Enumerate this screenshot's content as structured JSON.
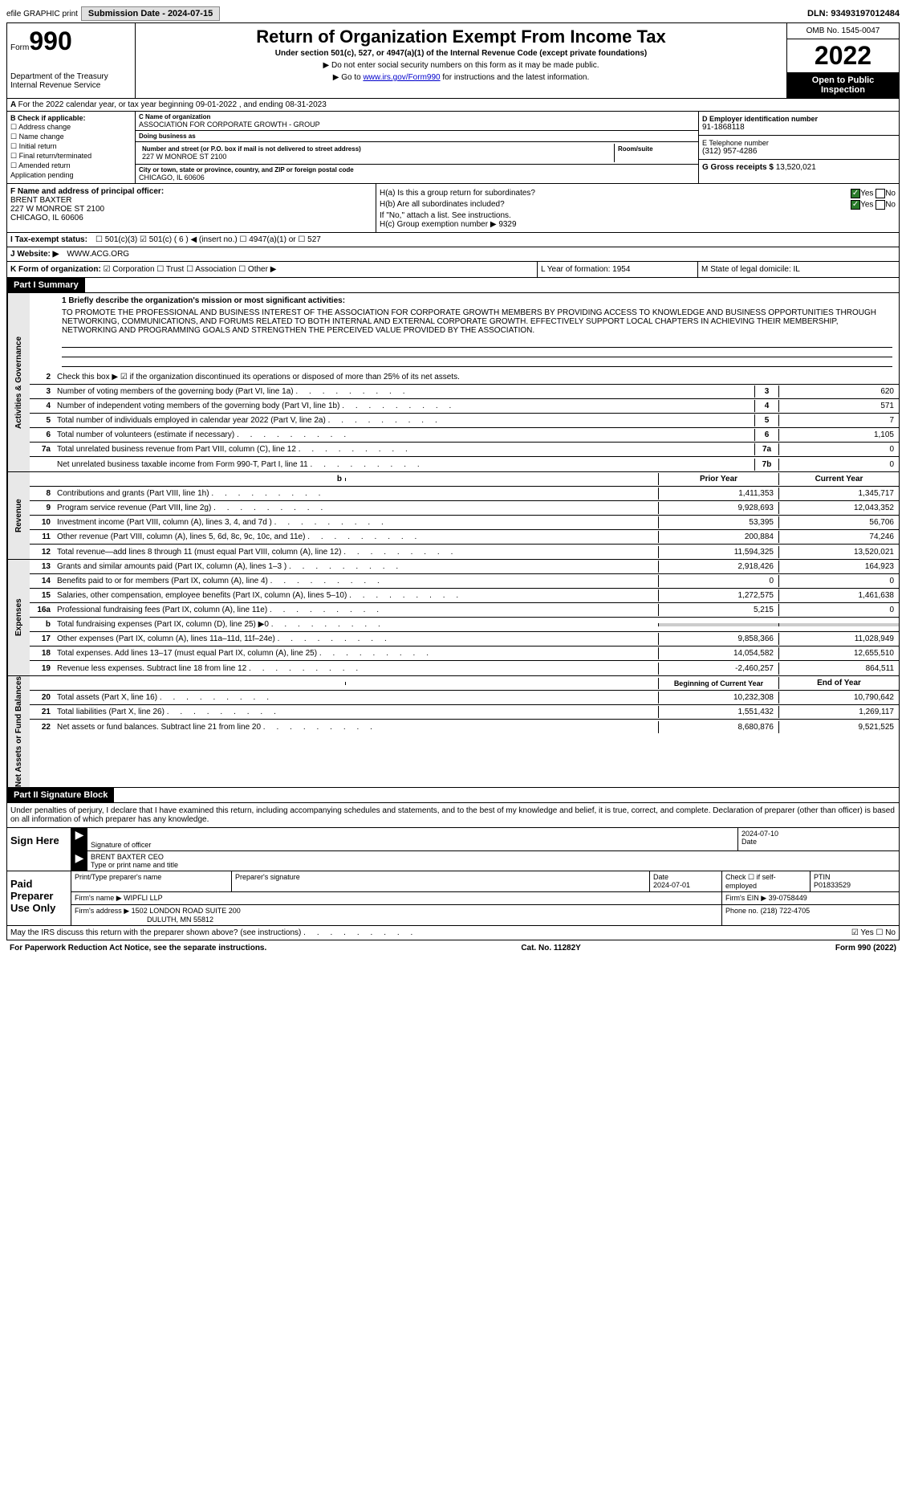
{
  "top": {
    "efile": "efile GRAPHIC print",
    "submission": "Submission Date - 2024-07-15",
    "dln": "DLN: 93493197012484"
  },
  "header": {
    "form_label": "Form",
    "form_num": "990",
    "dept": "Department of the Treasury",
    "irs": "Internal Revenue Service",
    "title": "Return of Organization Exempt From Income Tax",
    "subtitle": "Under section 501(c), 527, or 4947(a)(1) of the Internal Revenue Code (except private foundations)",
    "notice1": "▶ Do not enter social security numbers on this form as it may be made public.",
    "notice2_pre": "▶ Go to ",
    "notice2_link": "www.irs.gov/Form990",
    "notice2_post": " for instructions and the latest information.",
    "omb": "OMB No. 1545-0047",
    "year": "2022",
    "open": "Open to Public Inspection"
  },
  "row_a": "For the 2022 calendar year, or tax year beginning 09-01-2022    , and ending 08-31-2023",
  "col_b": {
    "title": "B Check if applicable:",
    "items": [
      "☐ Address change",
      "☐ Name change",
      "☐ Initial return",
      "☐ Final return/terminated",
      "☐ Amended return",
      "   Application pending"
    ]
  },
  "col_c": {
    "name_label": "C Name of organization",
    "name": "ASSOCIATION FOR CORPORATE GROWTH - GROUP",
    "dba_label": "Doing business as",
    "dba": "",
    "addr_label": "Number and street (or P.O. box if mail is not delivered to street address)",
    "addr": "227 W MONROE ST 2100",
    "room_label": "Room/suite",
    "room": "",
    "city_label": "City or town, state or province, country, and ZIP or foreign postal code",
    "city": "CHICAGO, IL  60606"
  },
  "col_d": {
    "ein_label": "D Employer identification number",
    "ein": "91-1868118",
    "phone_label": "E Telephone number",
    "phone": "(312) 957-4286",
    "gross_label": "G Gross receipts $",
    "gross": "13,520,021"
  },
  "col_f": {
    "label": "F  Name and address of principal officer:",
    "name": "BRENT BAXTER",
    "addr1": "227 W MONROE ST 2100",
    "addr2": "CHICAGO, IL  60606"
  },
  "col_h": {
    "ha_label": "H(a)  Is this a group return for subordinates?",
    "hb_label": "H(b)  Are all subordinates included?",
    "hb_note": "If \"No,\" attach a list. See instructions.",
    "hc_label": "H(c)  Group exemption number ▶",
    "hc_val": "9329"
  },
  "row_i": {
    "label": "I    Tax-exempt status:",
    "opts": "☐ 501(c)(3)   ☑ 501(c) ( 6 ) ◀ (insert no.)   ☐ 4947(a)(1) or  ☐ 527"
  },
  "row_j": {
    "label": "J   Website: ▶",
    "val": "WWW.ACG.ORG"
  },
  "row_k": {
    "label": "K Form of organization:",
    "opts": "☑ Corporation  ☐ Trust  ☐ Association  ☐ Other ▶"
  },
  "row_lm": {
    "l": "L Year of formation: 1954",
    "m": "M State of legal domicile: IL"
  },
  "parts": {
    "p1": "Part I     Summary",
    "p2": "Part II     Signature Block"
  },
  "side_labels": {
    "ag": "Activities & Governance",
    "rev": "Revenue",
    "exp": "Expenses",
    "net": "Net Assets or Fund Balances"
  },
  "summary": {
    "l1_label": "1  Briefly describe the organization's mission or most significant activities:",
    "l1_text": "TO PROMOTE THE PROFESSIONAL AND BUSINESS INTEREST OF THE ASSOCIATION FOR CORPORATE GROWTH MEMBERS BY PROVIDING ACCESS TO KNOWLEDGE AND BUSINESS OPPORTUNITIES THROUGH NETWORKING, COMMUNICATIONS, AND FORUMS RELATED TO BOTH INTERNAL AND EXTERNAL CORPORATE GROWTH. EFFECTIVELY SUPPORT LOCAL CHAPTERS IN ACHIEVING THEIR MEMBERSHIP, NETWORKING AND PROGRAMMING GOALS AND STRENGTHEN THE PERCEIVED VALUE PROVIDED BY THE ASSOCIATION.",
    "l2": "Check this box ▶ ☑ if the organization discontinued its operations or disposed of more than 25% of its net assets.",
    "lines_single": [
      {
        "n": "3",
        "t": "Number of voting members of the governing body (Part VI, line 1a)",
        "b": "3",
        "v": "620"
      },
      {
        "n": "4",
        "t": "Number of independent voting members of the governing body (Part VI, line 1b)",
        "b": "4",
        "v": "571"
      },
      {
        "n": "5",
        "t": "Total number of individuals employed in calendar year 2022 (Part V, line 2a)",
        "b": "5",
        "v": "7"
      },
      {
        "n": "6",
        "t": "Total number of volunteers (estimate if necessary)",
        "b": "6",
        "v": "1,105"
      },
      {
        "n": "7a",
        "t": "Total unrelated business revenue from Part VIII, column (C), line 12",
        "b": "7a",
        "v": "0"
      },
      {
        "n": "",
        "t": "Net unrelated business taxable income from Form 990-T, Part I, line 11",
        "b": "7b",
        "v": "0"
      }
    ],
    "col_headers": {
      "b": "b",
      "prior": "Prior Year",
      "current": "Current Year"
    },
    "revenue": [
      {
        "n": "8",
        "t": "Contributions and grants (Part VIII, line 1h)",
        "p": "1,411,353",
        "c": "1,345,717"
      },
      {
        "n": "9",
        "t": "Program service revenue (Part VIII, line 2g)",
        "p": "9,928,693",
        "c": "12,043,352"
      },
      {
        "n": "10",
        "t": "Investment income (Part VIII, column (A), lines 3, 4, and 7d )",
        "p": "53,395",
        "c": "56,706"
      },
      {
        "n": "11",
        "t": "Other revenue (Part VIII, column (A), lines 5, 6d, 8c, 9c, 10c, and 11e)",
        "p": "200,884",
        "c": "74,246"
      },
      {
        "n": "12",
        "t": "Total revenue—add lines 8 through 11 (must equal Part VIII, column (A), line 12)",
        "p": "11,594,325",
        "c": "13,520,021"
      }
    ],
    "expenses": [
      {
        "n": "13",
        "t": "Grants and similar amounts paid (Part IX, column (A), lines 1–3 )",
        "p": "2,918,426",
        "c": "164,923"
      },
      {
        "n": "14",
        "t": "Benefits paid to or for members (Part IX, column (A), line 4)",
        "p": "0",
        "c": "0"
      },
      {
        "n": "15",
        "t": "Salaries, other compensation, employee benefits (Part IX, column (A), lines 5–10)",
        "p": "1,272,575",
        "c": "1,461,638"
      },
      {
        "n": "16a",
        "t": "Professional fundraising fees (Part IX, column (A), line 11e)",
        "p": "5,215",
        "c": "0"
      },
      {
        "n": "b",
        "t": "Total fundraising expenses (Part IX, column (D), line 25) ▶0",
        "p": "",
        "c": "",
        "gray": true
      },
      {
        "n": "17",
        "t": "Other expenses (Part IX, column (A), lines 11a–11d, 11f–24e)",
        "p": "9,858,366",
        "c": "11,028,949"
      },
      {
        "n": "18",
        "t": "Total expenses. Add lines 13–17 (must equal Part IX, column (A), line 25)",
        "p": "14,054,582",
        "c": "12,655,510"
      },
      {
        "n": "19",
        "t": "Revenue less expenses. Subtract line 18 from line 12",
        "p": "-2,460,257",
        "c": "864,511"
      }
    ],
    "net_headers": {
      "begin": "Beginning of Current Year",
      "end": "End of Year"
    },
    "net": [
      {
        "n": "20",
        "t": "Total assets (Part X, line 16)",
        "p": "10,232,308",
        "c": "10,790,642"
      },
      {
        "n": "21",
        "t": "Total liabilities (Part X, line 26)",
        "p": "1,551,432",
        "c": "1,269,117"
      },
      {
        "n": "22",
        "t": "Net assets or fund balances. Subtract line 21 from line 20",
        "p": "8,680,876",
        "c": "9,521,525"
      }
    ]
  },
  "sig": {
    "text": "Under penalties of perjury, I declare that I have examined this return, including accompanying schedules and statements, and to the best of my knowledge and belief, it is true, correct, and complete. Declaration of preparer (other than officer) is based on all information of which preparer has any knowledge.",
    "sign_here": "Sign Here",
    "sig_officer": "Signature of officer",
    "sig_date": "2024-07-10",
    "date_label": "Date",
    "name_title": "BRENT BAXTER CEO",
    "type_label": "Type or print name and title",
    "paid": "Paid Preparer Use Only",
    "prep_name_label": "Print/Type preparer's name",
    "prep_sig_label": "Preparer's signature",
    "prep_date_label": "Date",
    "prep_date": "2024-07-01",
    "check_label": "Check ☐ if self-employed",
    "ptin_label": "PTIN",
    "ptin": "P01833529",
    "firm_name_label": "Firm's name    ▶",
    "firm_name": "WIPFLI LLP",
    "firm_ein_label": "Firm's EIN ▶",
    "firm_ein": "39-0758449",
    "firm_addr_label": "Firm's address ▶",
    "firm_addr": "1502 LONDON ROAD SUITE 200",
    "firm_addr2": "DULUTH, MN  55812",
    "firm_phone_label": "Phone no.",
    "firm_phone": "(218) 722-4705",
    "discuss": "May the IRS discuss this return with the preparer shown above? (see instructions)",
    "yes_no": "☑ Yes  ☐ No"
  },
  "footer": {
    "paperwork": "For Paperwork Reduction Act Notice, see the separate instructions.",
    "cat": "Cat. No. 11282Y",
    "form": "Form 990 (2022)"
  }
}
